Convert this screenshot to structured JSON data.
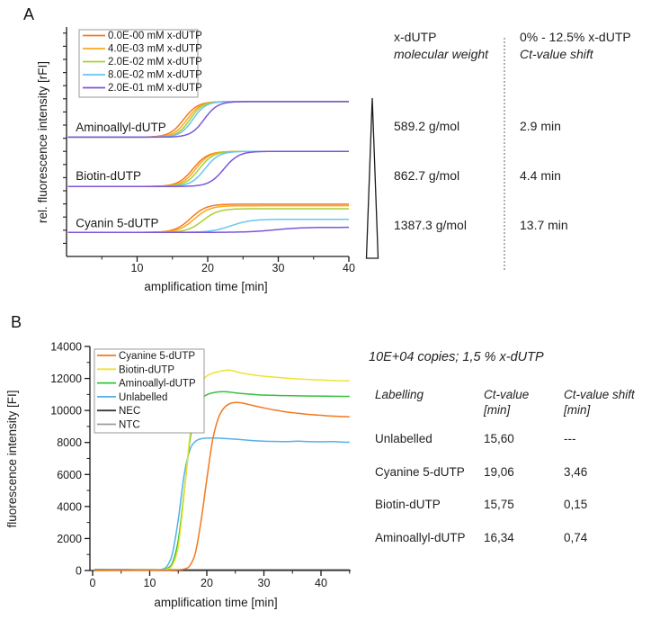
{
  "panel_a": {
    "label": "A",
    "table": {
      "col1_header_line1": "x-dUTP",
      "col1_header_line2": "molecular weight",
      "col2_header_line1": "0% - 12.5% x-dUTP",
      "col2_header_line2": "Ct-value shift",
      "rows": [
        {
          "mw": "589.2 g/mol",
          "shift": "2.9 min"
        },
        {
          "mw": "862.7 g/mol",
          "shift": "4.4 min"
        },
        {
          "mw": "1387.3 g/mol",
          "shift": "13.7 min"
        }
      ]
    }
  },
  "panel_b": {
    "label": "B",
    "table": {
      "title": "10E+04 copies; 1,5 % x-dUTP",
      "headers": [
        {
          "l1": "Labelling",
          "l2": ""
        },
        {
          "l1": "Ct-value",
          "l2": "[min]"
        },
        {
          "l1": "Ct-value shift",
          "l2": "[min]"
        }
      ],
      "rows": [
        {
          "labelling": "Unlabelled",
          "ct": "15,60",
          "shift": "---"
        },
        {
          "labelling": "Cyanine 5-dUTP",
          "ct": "19,06",
          "shift": "3,46"
        },
        {
          "labelling": "Biotin-dUTP",
          "ct": "15,75",
          "shift": "0,15"
        },
        {
          "labelling": "Aminoallyl-dUTP",
          "ct": "16,34",
          "shift": "0,74"
        }
      ]
    }
  },
  "chart_data": [
    {
      "id": "panel-a",
      "type": "line",
      "title": "",
      "xlabel": "amplification time [min]",
      "ylabel": "rel. fluorescence intensity [rFI]",
      "xlim": [
        0,
        40.3
      ],
      "ylim": [
        0,
        1
      ],
      "xticks": [
        10,
        20,
        30,
        40
      ],
      "xticks_minor": [
        5,
        15,
        25,
        35
      ],
      "y_axis": "unlabeled relative scale, 17 minor ticks",
      "grid": false,
      "legend_position": "top-left inside",
      "legend": [
        "0.0E-00 mM x-dUTP",
        "4.0E-03 mM x-dUTP",
        "2.0E-02 mM x-dUTP",
        "8.0E-02 mM x-dUTP",
        "2.0E-01 mM x-dUTP"
      ],
      "colors": [
        "#F4781F",
        "#FBA81B",
        "#A8CF35",
        "#67C5F2",
        "#7C55D9"
      ],
      "groups": [
        {
          "label": "Aminoallyl-dUTP",
          "label_pos": [
            1.3,
            0.545
          ],
          "baseline": 0.52,
          "series": [
            {
              "legend_index": 0,
              "plateau": 0.675,
              "midpoint": 16.6,
              "width": 1.0
            },
            {
              "legend_index": 1,
              "plateau": 0.675,
              "midpoint": 17.1,
              "width": 0.95
            },
            {
              "legend_index": 2,
              "plateau": 0.675,
              "midpoint": 17.5,
              "width": 0.9
            },
            {
              "legend_index": 3,
              "plateau": 0.675,
              "midpoint": 17.9,
              "width": 0.9
            },
            {
              "legend_index": 4,
              "plateau": 0.675,
              "midpoint": 19.5,
              "width": 0.95
            }
          ]
        },
        {
          "label": "Biotin-dUTP",
          "label_pos": [
            1.3,
            0.333
          ],
          "baseline": 0.305,
          "series": [
            {
              "legend_index": 0,
              "plateau": 0.458,
              "midpoint": 17.9,
              "width": 1.05
            },
            {
              "legend_index": 1,
              "plateau": 0.458,
              "midpoint": 18.3,
              "width": 1.0
            },
            {
              "legend_index": 2,
              "plateau": 0.458,
              "midpoint": 18.8,
              "width": 1.0
            },
            {
              "legend_index": 3,
              "plateau": 0.458,
              "midpoint": 19.6,
              "width": 1.0
            },
            {
              "legend_index": 4,
              "plateau": 0.458,
              "midpoint": 22.3,
              "width": 1.05
            }
          ]
        },
        {
          "label": "Cyanin 5-dUTP",
          "label_pos": [
            1.3,
            0.128
          ],
          "baseline": 0.105,
          "series": [
            {
              "legend_index": 0,
              "plateau": 0.228,
              "midpoint": 17.6,
              "width": 1.1
            },
            {
              "legend_index": 1,
              "plateau": 0.221,
              "midpoint": 18.1,
              "width": 1.1
            },
            {
              "legend_index": 2,
              "plateau": 0.208,
              "midpoint": 19.3,
              "width": 1.1
            },
            {
              "legend_index": 3,
              "plateau": 0.162,
              "midpoint": 23.3,
              "width": 1.4
            },
            {
              "legend_index": 4,
              "plateau": 0.127,
              "midpoint": 29.5,
              "width": 1.9
            }
          ]
        }
      ]
    },
    {
      "id": "panel-b",
      "type": "line",
      "title": "",
      "xlabel": "amplification time [min]",
      "ylabel": "fluorescence intensity [FI]",
      "xlim": [
        -0.5,
        45.5
      ],
      "ylim": [
        0,
        14000
      ],
      "xticks": [
        0,
        10,
        20,
        30,
        40
      ],
      "xticks_minor": [
        5,
        15,
        25,
        35,
        45
      ],
      "yticks": [
        0,
        2000,
        4000,
        6000,
        8000,
        10000,
        12000,
        14000
      ],
      "yticks_minor": [
        1000,
        3000,
        5000,
        7000,
        9000,
        11000,
        13000
      ],
      "grid": false,
      "legend_position": "top-left inside",
      "series": [
        {
          "name": "NTC",
          "color": "#9B9B9B",
          "points": [
            [
              0.3,
              60
            ],
            [
              5,
              55
            ],
            [
              10,
              55
            ],
            [
              20,
              50
            ],
            [
              30,
              50
            ],
            [
              40,
              50
            ],
            [
              45,
              50
            ]
          ]
        },
        {
          "name": "NEC",
          "color": "#3A3A3A",
          "points": [
            [
              0.3,
              30
            ],
            [
              5,
              30
            ],
            [
              10,
              30
            ],
            [
              20,
              25
            ],
            [
              30,
              25
            ],
            [
              40,
              25
            ],
            [
              45,
              25
            ]
          ]
        },
        {
          "name": "Unlabelled",
          "color": "#55B1E9",
          "points": [
            [
              0.3,
              5
            ],
            [
              3,
              10
            ],
            [
              6,
              15
            ],
            [
              9,
              20
            ],
            [
              11,
              35
            ],
            [
              12,
              70
            ],
            [
              13,
              260
            ],
            [
              14,
              1100
            ],
            [
              15,
              3200
            ],
            [
              16,
              5900
            ],
            [
              17,
              7500
            ],
            [
              18,
              8060
            ],
            [
              19,
              8230
            ],
            [
              20,
              8270
            ],
            [
              21,
              8280
            ],
            [
              22,
              8270
            ],
            [
              24,
              8230
            ],
            [
              26,
              8180
            ],
            [
              28,
              8120
            ],
            [
              30,
              8080
            ],
            [
              32,
              8060
            ],
            [
              34,
              8050
            ],
            [
              36,
              8080
            ],
            [
              38,
              8050
            ],
            [
              40,
              8040
            ],
            [
              42,
              8050
            ],
            [
              44,
              8020
            ],
            [
              45,
              8020
            ]
          ]
        },
        {
          "name": "Aminoallyl-dUTP",
          "color": "#33C13C",
          "points": [
            [
              0.3,
              5
            ],
            [
              3,
              10
            ],
            [
              6,
              15
            ],
            [
              10,
              25
            ],
            [
              12,
              40
            ],
            [
              13,
              120
            ],
            [
              14,
              500
            ],
            [
              15,
              1900
            ],
            [
              16,
              4800
            ],
            [
              17,
              8000
            ],
            [
              18,
              9950
            ],
            [
              19,
              10700
            ],
            [
              20,
              10980
            ],
            [
              21,
              11100
            ],
            [
              22,
              11160
            ],
            [
              23,
              11180
            ],
            [
              24,
              11150
            ],
            [
              25,
              11100
            ],
            [
              27,
              11030
            ],
            [
              29,
              10980
            ],
            [
              31,
              10950
            ],
            [
              33,
              10930
            ],
            [
              35,
              10920
            ],
            [
              38,
              10900
            ],
            [
              41,
              10890
            ],
            [
              44,
              10880
            ],
            [
              45,
              10880
            ]
          ]
        },
        {
          "name": "Biotin-dUTP",
          "color": "#EFE233",
          "points": [
            [
              0.3,
              5
            ],
            [
              3,
              10
            ],
            [
              6,
              15
            ],
            [
              10,
              25
            ],
            [
              12,
              35
            ],
            [
              13,
              80
            ],
            [
              14,
              350
            ],
            [
              15,
              1500
            ],
            [
              16,
              4600
            ],
            [
              17,
              8300
            ],
            [
              18,
              10700
            ],
            [
              19,
              11750
            ],
            [
              20,
              12150
            ],
            [
              21,
              12330
            ],
            [
              22,
              12420
            ],
            [
              23,
              12500
            ],
            [
              24,
              12520
            ],
            [
              25,
              12440
            ],
            [
              26,
              12340
            ],
            [
              28,
              12230
            ],
            [
              30,
              12140
            ],
            [
              32,
              12080
            ],
            [
              34,
              12020
            ],
            [
              36,
              11970
            ],
            [
              38,
              11930
            ],
            [
              40,
              11900
            ],
            [
              42,
              11870
            ],
            [
              44,
              11850
            ],
            [
              45,
              11840
            ]
          ]
        },
        {
          "name": "Cyanine 5-dUTP",
          "color": "#F4781F",
          "points": [
            [
              0.3,
              5
            ],
            [
              3,
              10
            ],
            [
              6,
              15
            ],
            [
              10,
              20
            ],
            [
              13,
              25
            ],
            [
              15,
              45
            ],
            [
              16,
              90
            ],
            [
              17,
              280
            ],
            [
              18,
              1100
            ],
            [
              19,
              3100
            ],
            [
              20,
              5700
            ],
            [
              21,
              8100
            ],
            [
              22,
              9500
            ],
            [
              23,
              10150
            ],
            [
              24,
              10420
            ],
            [
              25,
              10500
            ],
            [
              26,
              10480
            ],
            [
              27,
              10400
            ],
            [
              28,
              10320
            ],
            [
              30,
              10160
            ],
            [
              32,
              10020
            ],
            [
              34,
              9900
            ],
            [
              36,
              9820
            ],
            [
              38,
              9750
            ],
            [
              40,
              9700
            ],
            [
              42,
              9650
            ],
            [
              44,
              9620
            ],
            [
              45,
              9600
            ]
          ]
        }
      ],
      "legend": [
        "Cyanine 5-dUTP",
        "Biotin-dUTP",
        "Aminoallyl-dUTP",
        "Unlabelled",
        "NEC",
        "NTC"
      ],
      "legend_colors": [
        "#F4781F",
        "#EFE233",
        "#33C13C",
        "#55B1E9",
        "#3A3A3A",
        "#9B9B9B"
      ]
    }
  ]
}
